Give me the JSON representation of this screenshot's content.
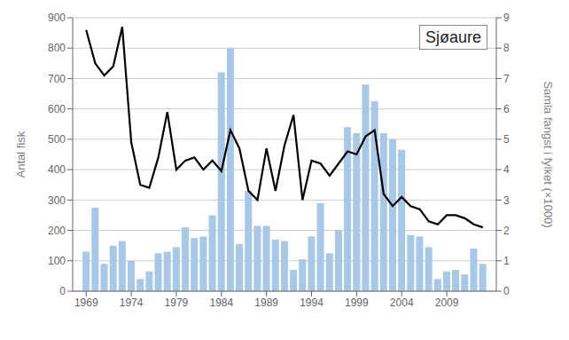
{
  "chart_data": {
    "type": "bar",
    "title": "Sjøaure",
    "x": [
      1969,
      1970,
      1971,
      1972,
      1973,
      1974,
      1975,
      1976,
      1977,
      1978,
      1979,
      1980,
      1981,
      1982,
      1983,
      1984,
      1985,
      1986,
      1987,
      1988,
      1989,
      1990,
      1991,
      1992,
      1993,
      1994,
      1995,
      1996,
      1997,
      1998,
      1999,
      2000,
      2001,
      2002,
      2003,
      2004,
      2005,
      2006,
      2007,
      2008,
      2009,
      2010,
      2011,
      2012,
      2013
    ],
    "xlim": [
      1967.5,
      2014.5
    ],
    "xticks": [
      1969,
      1974,
      1979,
      1984,
      1989,
      1994,
      1999,
      2004,
      2009
    ],
    "ylabel": "Antal fisk",
    "ylim": [
      0,
      900
    ],
    "yticks": [
      0,
      100,
      200,
      300,
      400,
      500,
      600,
      700,
      800,
      900
    ],
    "y2label": "Samla fangst i fylket  (×1000)",
    "y2lim": [
      0,
      9
    ],
    "y2ticks": [
      0,
      1,
      2,
      3,
      4,
      5,
      6,
      7,
      8,
      9
    ],
    "grid": true,
    "series": [
      {
        "type": "bar",
        "color": "#a8c8e8",
        "values": [
          130,
          275,
          90,
          150,
          165,
          100,
          40,
          65,
          125,
          130,
          145,
          210,
          175,
          180,
          250,
          720,
          800,
          155,
          330,
          215,
          215,
          170,
          165,
          70,
          105,
          180,
          290,
          125,
          200,
          540,
          520,
          680,
          625,
          520,
          500,
          465,
          185,
          180,
          145,
          40,
          65,
          70,
          55,
          140,
          90
        ]
      },
      {
        "type": "line",
        "color": "#000000",
        "axis": "y2",
        "values": [
          8.6,
          7.5,
          7.1,
          7.4,
          8.7,
          4.9,
          3.5,
          3.4,
          4.4,
          5.9,
          4.0,
          4.3,
          4.4,
          4.0,
          4.3,
          3.95,
          5.3,
          4.7,
          3.3,
          3.0,
          4.7,
          3.3,
          4.8,
          5.8,
          3.0,
          4.3,
          4.2,
          3.8,
          4.2,
          4.6,
          4.5,
          5.1,
          5.3,
          3.2,
          2.8,
          3.1,
          2.8,
          2.7,
          2.3,
          2.2,
          2.5,
          2.5,
          2.4,
          2.2,
          2.1
        ]
      }
    ]
  }
}
